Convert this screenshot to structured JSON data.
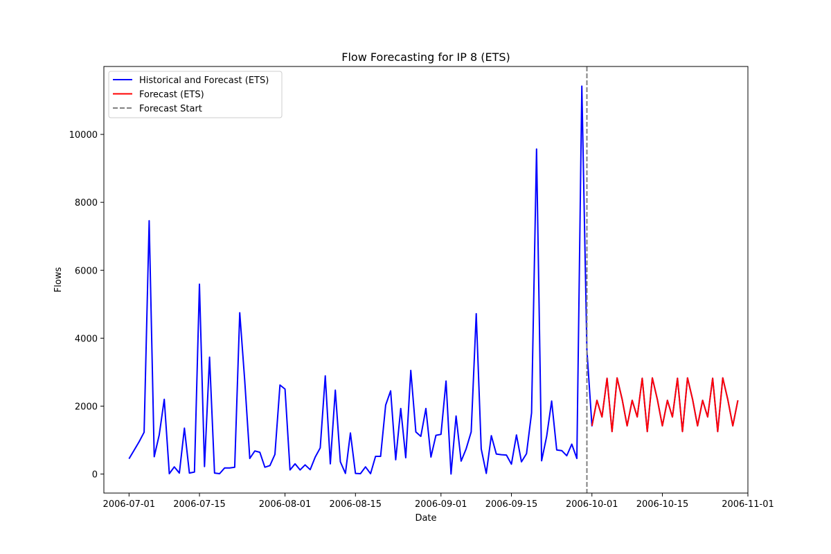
{
  "chart_data": {
    "type": "line",
    "title": "Flow Forecasting for IP 8 (ETS)",
    "xlabel": "Date",
    "ylabel": "Flows",
    "xlim": [
      "2006-06-26",
      "2006-11-01"
    ],
    "ylim": [
      -560,
      12000
    ],
    "x_ticks": [
      "2006-07-01",
      "2006-07-15",
      "2006-08-01",
      "2006-08-15",
      "2006-09-01",
      "2006-09-15",
      "2006-10-01",
      "2006-10-15",
      "2006-11-01"
    ],
    "y_ticks": [
      0,
      2000,
      4000,
      6000,
      8000,
      10000
    ],
    "grid": false,
    "legend_position": "top-left",
    "legend": [
      {
        "label": "Historical and Forecast (ETS)",
        "color": "#0000ff",
        "style": "solid"
      },
      {
        "label": "Forecast (ETS)",
        "color": "#ff0000",
        "style": "solid"
      },
      {
        "label": "Forecast Start",
        "color": "#808080",
        "style": "dashed"
      }
    ],
    "forecast_start": "2006-09-30",
    "series": [
      {
        "name": "Historical and Forecast (ETS)",
        "color": "#0000ff",
        "start_date": "2006-07-01",
        "values": [
          450,
          700,
          950,
          1230,
          7460,
          510,
          1150,
          2200,
          10,
          210,
          30,
          1350,
          30,
          60,
          5590,
          220,
          3440,
          30,
          10,
          180,
          180,
          200,
          4750,
          2750,
          460,
          680,
          640,
          200,
          250,
          580,
          2620,
          2500,
          120,
          300,
          120,
          270,
          130,
          500,
          770,
          2890,
          300,
          2470,
          360,
          20,
          1210,
          20,
          10,
          210,
          10,
          520,
          520,
          2030,
          2450,
          420,
          1930,
          480,
          3050,
          1240,
          1110,
          1930,
          500,
          1140,
          1170,
          2740,
          0,
          1710,
          380,
          740,
          1240,
          4720,
          740,
          20,
          1130,
          590,
          570,
          560,
          290,
          1150,
          360,
          600,
          1800,
          9570,
          390,
          1110,
          2150,
          710,
          690,
          540,
          880,
          460,
          11420,
          3650,
          1420,
          2170,
          1680,
          2820,
          1250,
          2830,
          2200,
          1420,
          2170,
          1680,
          2820,
          1250,
          2830,
          2200,
          1420,
          2170,
          1680,
          2820,
          1250,
          2830,
          2200,
          1420,
          2170,
          1680,
          2820,
          1250,
          2830,
          2200,
          1420,
          2170
        ]
      },
      {
        "name": "Forecast (ETS)",
        "color": "#ff0000",
        "start_date": "2006-10-01",
        "values": [
          1420,
          2170,
          1680,
          2820,
          1250,
          2830,
          2200,
          1420,
          2170,
          1680,
          2820,
          1250,
          2830,
          2200,
          1420,
          2170,
          1680,
          2820,
          1250,
          2830,
          2200,
          1420,
          2170,
          1680,
          2820,
          1250,
          2830,
          2200,
          1420,
          2170
        ]
      }
    ]
  }
}
